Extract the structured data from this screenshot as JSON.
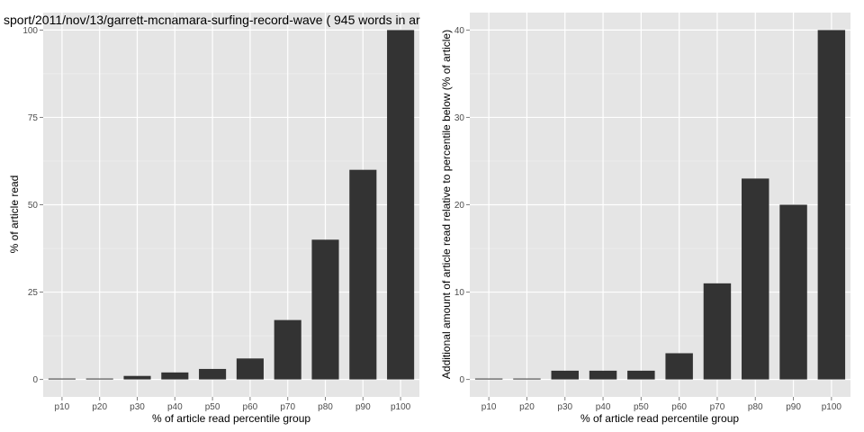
{
  "chart_data": [
    {
      "type": "bar",
      "title": "sport/2011/nov/13/garrett-mcnamara-surfing-record-wave ( 945 words in ar",
      "xlabel": "% of article read percentile group",
      "ylabel": "% of article read",
      "categories": [
        "p10",
        "p20",
        "p30",
        "p40",
        "p50",
        "p60",
        "p70",
        "p80",
        "p90",
        "p100"
      ],
      "values": [
        0,
        0,
        1,
        2,
        3,
        6,
        17,
        40,
        60,
        100
      ],
      "ylim": [
        -5,
        105
      ],
      "yticks": [
        0,
        25,
        50,
        75,
        100
      ],
      "ytick_labels": [
        "0",
        "25",
        "50",
        "75",
        "100"
      ],
      "grid": true,
      "bar_color": "#333333",
      "panel_background": "#e5e5e5",
      "grid_color": "#ffffff"
    },
    {
      "type": "bar",
      "title": "",
      "xlabel": "% of article read percentile group",
      "ylabel": "Additional amount of article read relative to percentile below (% of article)",
      "categories": [
        "p10",
        "p20",
        "p30",
        "p40",
        "p50",
        "p60",
        "p70",
        "p80",
        "p90",
        "p100"
      ],
      "values": [
        0,
        0,
        1,
        1,
        1,
        3,
        11,
        23,
        20,
        40
      ],
      "ylim": [
        -2,
        42
      ],
      "yticks": [
        0,
        10,
        20,
        30,
        40
      ],
      "ytick_labels": [
        "0",
        "10",
        "20",
        "30",
        "40"
      ],
      "grid": true,
      "bar_color": "#333333",
      "panel_background": "#e5e5e5",
      "grid_color": "#ffffff"
    }
  ]
}
